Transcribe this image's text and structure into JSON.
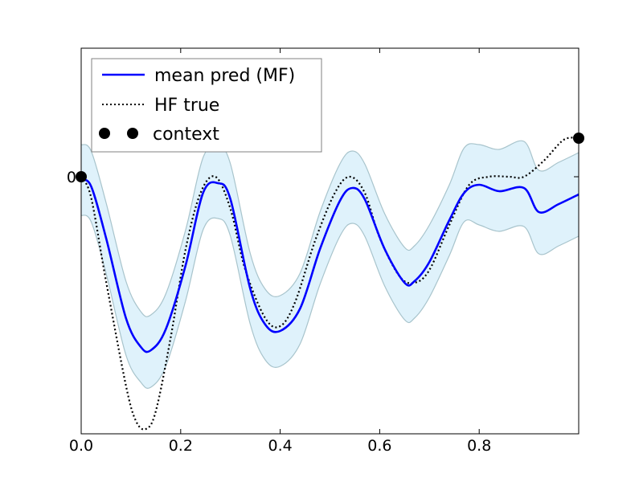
{
  "chart_data": {
    "type": "line",
    "title": "",
    "xlabel": "",
    "ylabel": "",
    "xlim": [
      0,
      1
    ],
    "ylim": [
      -1.6,
      0.8
    ],
    "x_ticks": [
      0.0,
      0.2,
      0.4,
      0.6,
      0.8
    ],
    "x_tick_labels": [
      "0.0",
      "0.2",
      "0.4",
      "0.6",
      "0.8"
    ],
    "y_ticks": [
      0
    ],
    "y_tick_labels": [
      "0"
    ],
    "grid": false,
    "legend_position": "upper-left",
    "legend": [
      "mean pred (MF)",
      "HF true",
      "context"
    ],
    "colors": {
      "mean_pred": "#0000ff",
      "hf_true": "#000000",
      "band_fill": "#dff2fb",
      "band_edge": "#a8c4cc",
      "context": "#000000"
    },
    "series": [
      {
        "name": "mean pred (MF)",
        "style": "solid-line",
        "x": [
          0,
          0.02,
          0.05,
          0.09,
          0.12,
          0.14,
          0.17,
          0.21,
          0.245,
          0.275,
          0.3,
          0.34,
          0.37,
          0.4,
          0.44,
          0.48,
          0.52,
          0.545,
          0.57,
          0.61,
          0.65,
          0.67,
          0.7,
          0.74,
          0.77,
          0.8,
          0.84,
          0.89,
          0.92,
          0.96,
          1.0
        ],
        "y": [
          -0.02,
          -0.06,
          -0.38,
          -0.88,
          -1.06,
          -1.08,
          -0.95,
          -0.55,
          -0.1,
          -0.04,
          -0.14,
          -0.7,
          -0.92,
          -0.96,
          -0.82,
          -0.45,
          -0.15,
          -0.07,
          -0.14,
          -0.45,
          -0.66,
          -0.65,
          -0.53,
          -0.27,
          -0.1,
          -0.05,
          -0.09,
          -0.07,
          -0.22,
          -0.17,
          -0.11
        ]
      },
      {
        "name": "HF true",
        "style": "dotted-line",
        "x": [
          0,
          0.02,
          0.05,
          0.09,
          0.11,
          0.13,
          0.15,
          0.18,
          0.21,
          0.24,
          0.27,
          0.3,
          0.33,
          0.37,
          0.4,
          0.43,
          0.47,
          0.51,
          0.54,
          0.57,
          0.6,
          0.64,
          0.67,
          0.7,
          0.74,
          0.78,
          0.82,
          0.86,
          0.89,
          0.93,
          0.97,
          1.0
        ],
        "y": [
          0,
          -0.13,
          -0.65,
          -1.3,
          -1.52,
          -1.57,
          -1.46,
          -1.0,
          -0.45,
          -0.1,
          0,
          -0.2,
          -0.58,
          -0.88,
          -0.93,
          -0.78,
          -0.4,
          -0.1,
          0,
          -0.1,
          -0.38,
          -0.62,
          -0.66,
          -0.58,
          -0.3,
          -0.05,
          0,
          0,
          0,
          0.1,
          0.23,
          0.24
        ]
      }
    ],
    "band": {
      "name": "uncertainty",
      "x": [
        0,
        0.02,
        0.05,
        0.09,
        0.12,
        0.14,
        0.17,
        0.21,
        0.245,
        0.275,
        0.3,
        0.34,
        0.37,
        0.4,
        0.44,
        0.48,
        0.52,
        0.545,
        0.57,
        0.61,
        0.65,
        0.67,
        0.7,
        0.74,
        0.77,
        0.8,
        0.84,
        0.89,
        0.92,
        0.96,
        1.0
      ],
      "upper": [
        0.2,
        0.16,
        -0.16,
        -0.65,
        -0.84,
        -0.86,
        -0.73,
        -0.33,
        0.12,
        0.19,
        0.08,
        -0.48,
        -0.7,
        -0.74,
        -0.6,
        -0.22,
        0.08,
        0.16,
        0.08,
        -0.23,
        -0.44,
        -0.43,
        -0.3,
        -0.05,
        0.18,
        0.2,
        0.17,
        0.22,
        0.04,
        0.09,
        0.15
      ],
      "lower": [
        -0.24,
        -0.28,
        -0.6,
        -1.11,
        -1.28,
        -1.31,
        -1.18,
        -0.77,
        -0.33,
        -0.26,
        -0.37,
        -0.92,
        -1.14,
        -1.18,
        -1.04,
        -0.67,
        -0.37,
        -0.29,
        -0.37,
        -0.68,
        -0.89,
        -0.88,
        -0.75,
        -0.49,
        -0.28,
        -0.3,
        -0.34,
        -0.31,
        -0.48,
        -0.43,
        -0.37
      ]
    },
    "context_points": {
      "name": "context",
      "x": [
        0,
        1.0
      ],
      "y": [
        0,
        0.24
      ]
    }
  }
}
